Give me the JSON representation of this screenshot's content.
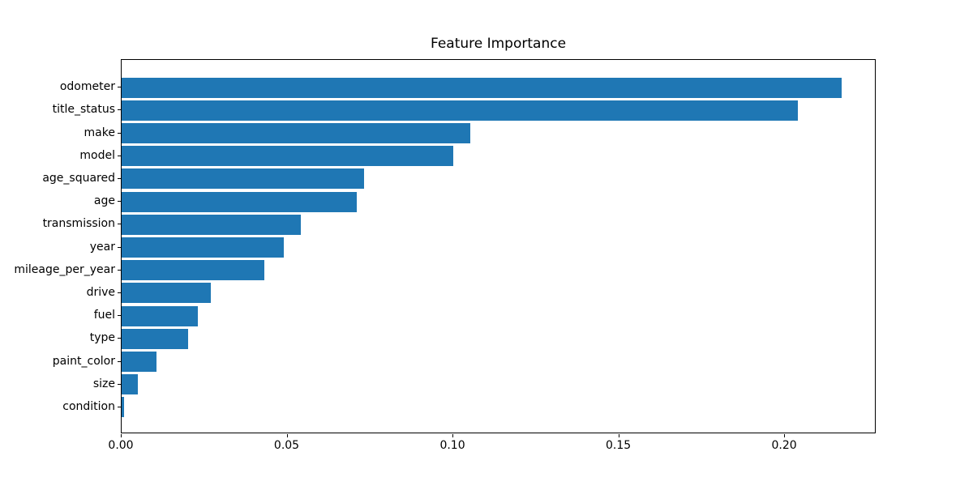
{
  "chart_data": {
    "type": "bar",
    "orientation": "horizontal",
    "title": "Feature Importance",
    "categories": [
      "odometer",
      "title_status",
      "make",
      "model",
      "age_squared",
      "age",
      "transmission",
      "year",
      "mileage_per_year",
      "drive",
      "fuel",
      "type",
      "paint_color",
      "size",
      "condition"
    ],
    "values": [
      0.217,
      0.204,
      0.105,
      0.1,
      0.073,
      0.071,
      0.054,
      0.049,
      0.043,
      0.027,
      0.023,
      0.02,
      0.0105,
      0.005,
      0.0008
    ],
    "xlabel": "",
    "ylabel": "",
    "xlim": [
      0,
      0.2276
    ],
    "x_ticks": [
      0.0,
      0.05,
      0.1,
      0.15,
      0.2
    ],
    "x_tick_labels": [
      "0.00",
      "0.05",
      "0.10",
      "0.15",
      "0.20"
    ],
    "grid": false,
    "legend": null
  },
  "colors": {
    "bar": "#1f77b4",
    "background": "#ffffff",
    "spine": "#000000",
    "text": "#000000"
  }
}
